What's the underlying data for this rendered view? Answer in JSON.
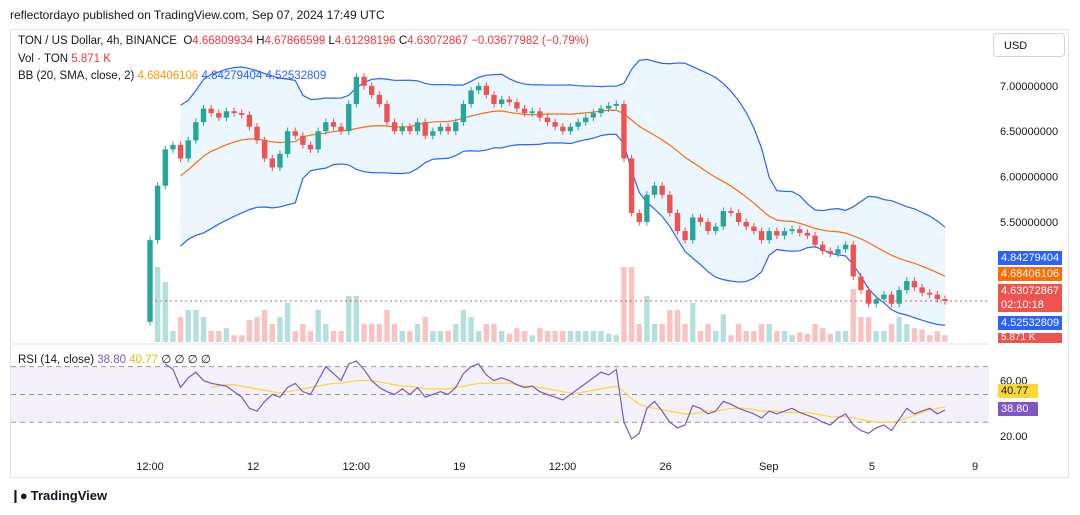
{
  "header": {
    "publisher_line": "reflectordayo published on TradingView.com, Sep 07, 2024 17:49 UTC"
  },
  "legend": {
    "symbol": "TON / US Dollar, 4h, BINANCE",
    "o_label": "O",
    "o_value": "4.66809934",
    "h_label": "H",
    "h_value": "4.67866599",
    "l_label": "L",
    "l_value": "4.61298196",
    "c_label": "C",
    "c_value": "4.63072867",
    "change": "−0.03677982 (−0.79%)",
    "vol_label": "Vol · TON",
    "vol_value": "5.871 K",
    "bb_label": "BB (20, SMA, close, 2)",
    "bb_basis": "4.68406106",
    "bb_upper": "4.84279404",
    "bb_lower": "4.52532809",
    "rsi_label": "RSI (14, close)",
    "rsi_value": "38.80",
    "rsi_ma": "40.77",
    "rsi_extra": "∅ ∅ ∅ ∅"
  },
  "currency_button": "USD",
  "price_tags": {
    "upper": "4.84279404",
    "basis": "4.68406106",
    "last": "4.63072867",
    "countdown": "02:10:18",
    "lower": "4.52532809",
    "volume": "5.871 K",
    "rsi_ma": "40.77",
    "rsi": "38.80"
  },
  "footer": {
    "brand": "TradingView",
    "logo_icon": "tv-logo-icon"
  },
  "colors": {
    "up": "#26a69a",
    "down": "#ef5350",
    "bb_band": "#2962ff",
    "bb_basis": "#ff6d00",
    "rsi_line": "#7e57c2",
    "rsi_ma": "#fdd835",
    "band_fill": "#e3f2fd"
  },
  "chart_data": {
    "type": "candlestick",
    "x_ticks": [
      "12:00",
      "12",
      "12:00",
      "19",
      "12:00",
      "26",
      "Sep",
      "5",
      "9"
    ],
    "price_axis": {
      "ticks": [
        "7.00000000",
        "6.50000000",
        "6.00000000",
        "5.50000000"
      ],
      "tick_values": [
        7.0,
        6.5,
        6.0,
        5.5
      ],
      "range": [
        4.2,
        7.45
      ]
    },
    "rsi_axis": {
      "ticks": [
        "60.00",
        "20.00"
      ],
      "tick_values": [
        60,
        20
      ],
      "bands": [
        70,
        50,
        30
      ],
      "range": [
        10,
        82
      ]
    },
    "close": [
      5.3,
      5.9,
      6.3,
      6.35,
      6.2,
      6.4,
      6.6,
      6.75,
      6.7,
      6.65,
      6.72,
      6.7,
      6.68,
      6.55,
      6.4,
      6.2,
      6.1,
      6.25,
      6.5,
      6.45,
      6.35,
      6.3,
      6.5,
      6.6,
      6.55,
      6.5,
      6.8,
      7.1,
      7.0,
      6.9,
      6.8,
      6.6,
      6.5,
      6.55,
      6.5,
      6.6,
      6.45,
      6.5,
      6.55,
      6.5,
      6.6,
      6.8,
      6.95,
      7.0,
      6.9,
      6.8,
      6.85,
      6.82,
      6.75,
      6.7,
      6.72,
      6.65,
      6.6,
      6.55,
      6.5,
      6.55,
      6.6,
      6.65,
      6.7,
      6.75,
      6.78,
      6.8,
      6.2,
      5.6,
      5.5,
      5.8,
      5.9,
      5.8,
      5.6,
      5.4,
      5.3,
      5.55,
      5.5,
      5.4,
      5.45,
      5.62,
      5.6,
      5.5,
      5.45,
      5.4,
      5.3,
      5.4,
      5.35,
      5.4,
      5.42,
      5.38,
      5.35,
      5.25,
      5.18,
      5.15,
      5.2,
      5.25,
      4.9,
      4.75,
      4.6,
      4.65,
      4.7,
      4.6,
      4.75,
      4.85,
      4.78,
      4.72,
      4.7,
      4.65,
      4.63
    ],
    "rsi": [
      null,
      null,
      72,
      68,
      55,
      62,
      66,
      60,
      58,
      57,
      56,
      52,
      48,
      40,
      38,
      45,
      50,
      48,
      55,
      58,
      52,
      50,
      60,
      70,
      65,
      60,
      72,
      74,
      68,
      60,
      55,
      52,
      50,
      54,
      50,
      55,
      48,
      50,
      52,
      50,
      55,
      65,
      70,
      72,
      64,
      60,
      62,
      60,
      57,
      55,
      56,
      52,
      50,
      48,
      46,
      50,
      54,
      58,
      62,
      66,
      64,
      68,
      30,
      18,
      22,
      40,
      45,
      38,
      30,
      26,
      28,
      42,
      40,
      36,
      38,
      45,
      43,
      40,
      38,
      36,
      33,
      38,
      36,
      38,
      40,
      37,
      35,
      33,
      30,
      28,
      33,
      36,
      28,
      24,
      22,
      26,
      28,
      24,
      32,
      40,
      36,
      38,
      40,
      36,
      38.8
    ],
    "rsi_ma": [
      null,
      null,
      null,
      null,
      null,
      null,
      null,
      null,
      55,
      56,
      57,
      57,
      56,
      55,
      54,
      53,
      52,
      51,
      52,
      53,
      54,
      55,
      56,
      57,
      58,
      58,
      59,
      60,
      60,
      60,
      59,
      58,
      57,
      56,
      56,
      55,
      54,
      54,
      54,
      54,
      55,
      56,
      57,
      58,
      58,
      58,
      58,
      58,
      57,
      56,
      56,
      55,
      54,
      53,
      52,
      51,
      51,
      52,
      53,
      54,
      55,
      56,
      52,
      47,
      43,
      41,
      40,
      39,
      38,
      37,
      36,
      36,
      37,
      38,
      38,
      39,
      40,
      40,
      40,
      39,
      38,
      38,
      38,
      37,
      37,
      37,
      37,
      36,
      35,
      34,
      34,
      34,
      33,
      32,
      31,
      30,
      30,
      30,
      31,
      33,
      35,
      37,
      39,
      40,
      40.77
    ],
    "volume_shape": "small bars with spikes near Aug 24 and Aug 29",
    "volume_current": "5.871 K"
  }
}
